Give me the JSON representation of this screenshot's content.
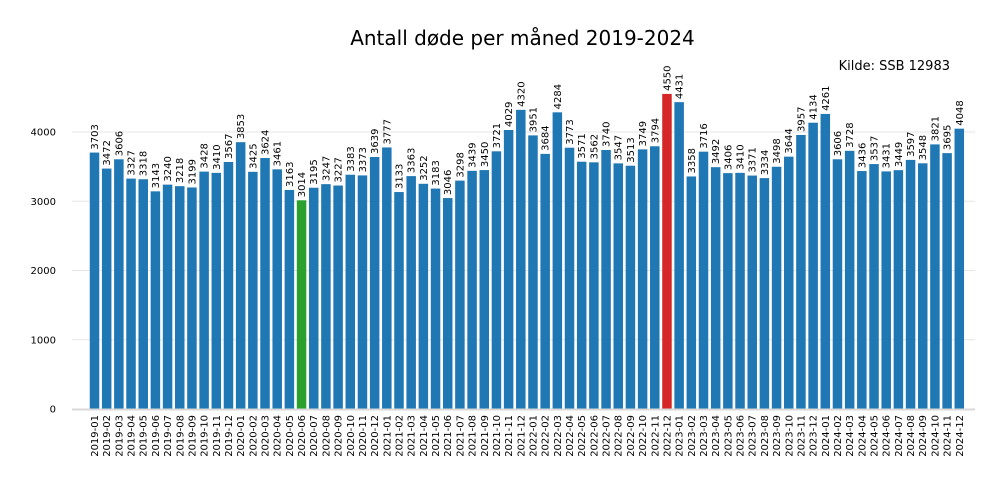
{
  "chart_data": {
    "type": "bar",
    "title": "Antall døde per måned 2019-2024",
    "source": "Kilde: SSB 12983",
    "xlabel": "",
    "ylabel": "",
    "ylim": [
      0,
      4700
    ],
    "yticks": [
      0,
      1000,
      2000,
      3000,
      4000
    ],
    "grid": true,
    "colors": {
      "default": "#1f77b4",
      "min": "#2ca02c",
      "max": "#d62728"
    },
    "categories": [
      "2019-01",
      "2019-02",
      "2019-03",
      "2019-04",
      "2019-05",
      "2019-06",
      "2019-07",
      "2019-08",
      "2019-09",
      "2019-10",
      "2019-11",
      "2019-12",
      "2020-01",
      "2020-02",
      "2020-03",
      "2020-04",
      "2020-05",
      "2020-06",
      "2020-07",
      "2020-08",
      "2020-09",
      "2020-10",
      "2020-11",
      "2020-12",
      "2021-01",
      "2021-02",
      "2021-03",
      "2021-04",
      "2021-05",
      "2021-06",
      "2021-07",
      "2021-08",
      "2021-09",
      "2021-10",
      "2021-11",
      "2021-12",
      "2022-01",
      "2022-02",
      "2022-03",
      "2022-04",
      "2022-05",
      "2022-06",
      "2022-07",
      "2022-08",
      "2022-09",
      "2022-10",
      "2022-11",
      "2022-12",
      "2023-01",
      "2023-02",
      "2023-03",
      "2023-04",
      "2023-05",
      "2023-06",
      "2023-07",
      "2023-08",
      "2023-09",
      "2023-10",
      "2023-11",
      "2023-12",
      "2024-01",
      "2024-02",
      "2024-03",
      "2024-04",
      "2024-05",
      "2024-06",
      "2024-07",
      "2024-08",
      "2024-09",
      "2024-10",
      "2024-11",
      "2024-12"
    ],
    "values": [
      3703,
      3472,
      3606,
      3327,
      3318,
      3143,
      3240,
      3218,
      3199,
      3428,
      3410,
      3567,
      3853,
      3425,
      3624,
      3461,
      3163,
      3014,
      3195,
      3247,
      3227,
      3383,
      3373,
      3639,
      3777,
      3133,
      3363,
      3252,
      3183,
      3046,
      3298,
      3439,
      3450,
      3721,
      4029,
      4320,
      3951,
      3684,
      4284,
      3773,
      3571,
      3562,
      3740,
      3547,
      3513,
      3749,
      3794,
      4550,
      4431,
      3358,
      3716,
      3492,
      3406,
      3410,
      3371,
      3334,
      3498,
      3644,
      3957,
      4134,
      4261,
      3606,
      3728,
      3436,
      3537,
      3431,
      3449,
      3597,
      3548,
      3821,
      3695,
      4048
    ]
  }
}
